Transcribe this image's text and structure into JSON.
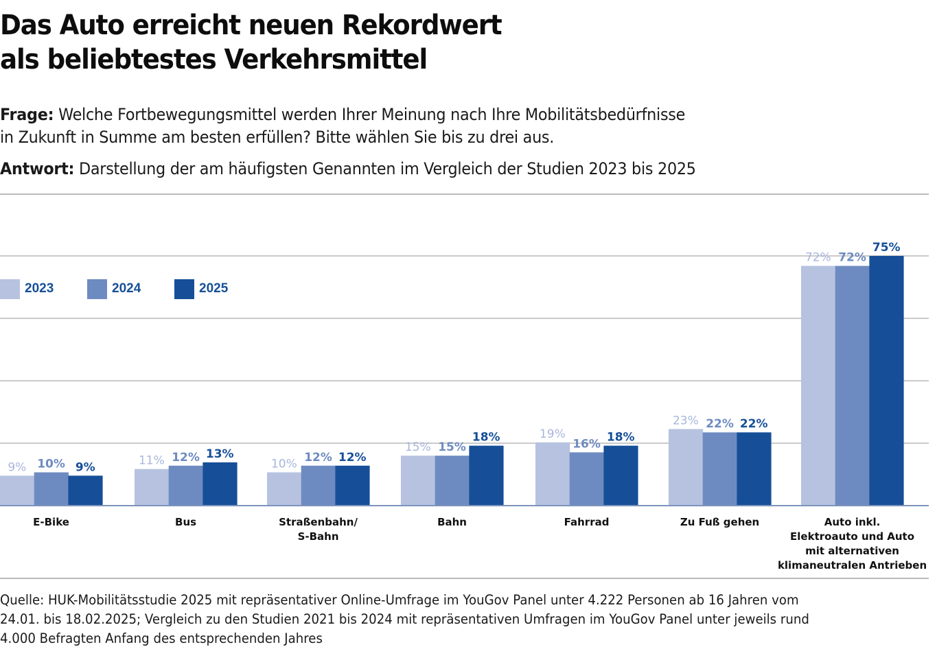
{
  "header": {
    "title_line1": "Das Auto erreicht neuen Rekordwert",
    "title_line2": "als beliebtestes Verkehrsmittel"
  },
  "question": {
    "label": "Frage:",
    "text_line1": " Welche Fortbewegungsmittel werden Ihrer Meinung nach Ihre Mobilitätsbedürfnisse",
    "text_line2": "in Zukunft in Summe am besten erfüllen? Bitte wählen Sie bis zu drei aus."
  },
  "answer": {
    "label": "Antwort:",
    "text": " Darstellung der am häufigsten Genannten im Vergleich der Studien 2023 bis 2025"
  },
  "source": {
    "line1": "Quelle: HUK-Mobilitätsstudie 2025 mit repräsentativer Online-Umfrage im YouGov Panel unter 4.222 Personen ab 16 Jahren vom",
    "line2": "24.01. bis 18.02.2025; Vergleich zu den Studien 2021 bis 2024 mit repräsentativen Umfragen im YouGov Panel unter jeweils rund",
    "line3": "4.000 Befragten Anfang des entsprechenden Jahres"
  },
  "colors": {
    "2023": "#b6c2e0",
    "2024": "#6e8bc1",
    "2025": "#164f98",
    "label_2023": "#a8b6dc",
    "label_2024": "#6e8bc1",
    "label_2025": "#164f98",
    "grid": "#b9b9b9",
    "baseline": "#7d93bd"
  },
  "chart_data": {
    "type": "bar",
    "title": "Das Auto erreicht neuen Rekordwert als beliebtestes Verkehrsmittel",
    "xlabel": "",
    "ylabel": "",
    "unit": "%",
    "ylim": [
      0,
      75
    ],
    "grid": true,
    "legend_position": "top-left",
    "categories": [
      [
        "E-Bike"
      ],
      [
        "Bus"
      ],
      [
        "Straßenbahn/",
        "S-Bahn"
      ],
      [
        "Bahn"
      ],
      [
        "Fahrrad"
      ],
      [
        "Zu Fuß gehen"
      ],
      [
        "Auto inkl.",
        "Elektroauto und Auto",
        "mit alternativen",
        "klimaneutralen Antrieben"
      ]
    ],
    "series": [
      {
        "name": "2023",
        "values": [
          9,
          11,
          10,
          15,
          19,
          23,
          72
        ]
      },
      {
        "name": "2024",
        "values": [
          10,
          12,
          12,
          15,
          16,
          22,
          72
        ]
      },
      {
        "name": "2025",
        "values": [
          9,
          13,
          12,
          18,
          18,
          22,
          75
        ]
      }
    ],
    "value_labels": [
      [
        "9%",
        "11%",
        "10%",
        "15%",
        "19%",
        "23%",
        "72%"
      ],
      [
        "10%",
        "12%",
        "12%",
        "15%",
        "16%",
        "22%",
        "72%"
      ],
      [
        "9%",
        "13%",
        "12%",
        "18%",
        "18%",
        "22%",
        "75%"
      ]
    ]
  }
}
